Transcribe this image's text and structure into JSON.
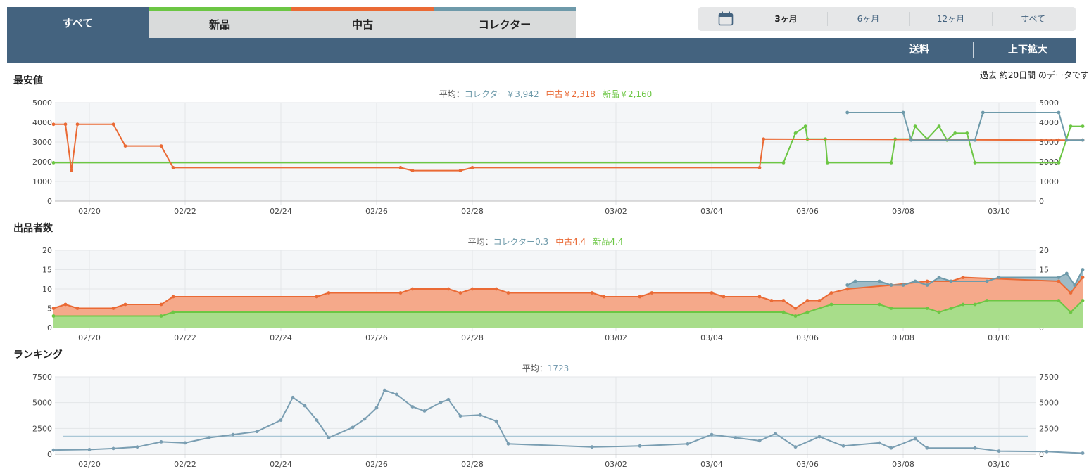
{
  "tabs": [
    {
      "label": "すべて",
      "accent": "#44637f",
      "active": true
    },
    {
      "label": "新品",
      "accent": "#6cc644",
      "active": false
    },
    {
      "label": "中古",
      "accent": "#ea6a35",
      "active": false
    },
    {
      "label": "コレクター",
      "accent": "#6e9aaa",
      "active": false
    }
  ],
  "range": {
    "icon": "calendar-icon",
    "items": [
      "3ヶ月",
      "6ヶ月",
      "12ヶ月",
      "すべて"
    ],
    "selected": "3ヶ月"
  },
  "toolbar": {
    "shipping": "送料",
    "zoom": "上下拡大"
  },
  "note": "過去 約20日間 のデータです",
  "colors": {
    "new": "#6cc644",
    "used": "#ea6a35",
    "collector": "#6e9aaa",
    "header": "#44637f",
    "ranking": "#7a9eb2"
  },
  "dates": [
    "02/20",
    "02/22",
    "02/24",
    "02/26",
    "02/28",
    "03/02",
    "03/04",
    "03/06",
    "03/08",
    "03/10"
  ],
  "chart_data": [
    {
      "type": "line",
      "title": "最安値",
      "avg_prefix": "平均：",
      "averages": [
        {
          "name": "コレクター",
          "text": "コレクター￥3,942",
          "color": "#6e9aaa"
        },
        {
          "name": "中古",
          "text": "中古￥2,318",
          "color": "#ea6a35"
        },
        {
          "name": "新品",
          "text": "新品￥2,160",
          "color": "#6cc644"
        }
      ],
      "ylim": [
        0,
        5000
      ],
      "yticks": [
        0,
        1000,
        2000,
        3000,
        4000,
        5000
      ],
      "xlim": [
        "02/19",
        "03/12"
      ],
      "grid": true,
      "series": [
        {
          "name": "新品",
          "color": "#6cc644",
          "points": [
            [
              "02/19 06:00",
              1950
            ],
            [
              "03/05 12:00",
              1950
            ],
            [
              "03/05 18:00",
              3450
            ],
            [
              "03/05 23:00",
              3800
            ],
            [
              "03/06 00:00",
              3150
            ],
            [
              "03/06 09:00",
              3150
            ],
            [
              "03/06 10:00",
              1950
            ],
            [
              "03/07 18:00",
              1950
            ],
            [
              "03/07 20:00",
              3150
            ],
            [
              "03/08 04:00",
              3150
            ],
            [
              "03/08 06:00",
              3800
            ],
            [
              "03/08 12:00",
              3150
            ],
            [
              "03/08 18:00",
              3800
            ],
            [
              "03/08 22:00",
              3100
            ],
            [
              "03/09 02:00",
              3450
            ],
            [
              "03/09 08:00",
              3450
            ],
            [
              "03/09 12:00",
              1950
            ],
            [
              "03/11 06:00",
              1950
            ],
            [
              "03/11 12:00",
              3800
            ],
            [
              "03/11 18:00",
              3800
            ]
          ]
        },
        {
          "name": "中古",
          "color": "#ea6a35",
          "points": [
            [
              "02/19 06:00",
              3900
            ],
            [
              "02/19 12:00",
              3900
            ],
            [
              "02/19 15:00",
              1550
            ],
            [
              "02/19 18:00",
              3900
            ],
            [
              "02/20 12:00",
              3900
            ],
            [
              "02/20 18:00",
              2800
            ],
            [
              "02/21 12:00",
              2800
            ],
            [
              "02/21 18:00",
              1700
            ],
            [
              "02/26 12:00",
              1700
            ],
            [
              "02/26 18:00",
              1550
            ],
            [
              "02/27 18:00",
              1550
            ],
            [
              "02/28 00:00",
              1700
            ],
            [
              "03/05 00:00",
              1700
            ],
            [
              "03/05 02:00",
              3150
            ],
            [
              "03/11 06:00",
              3100
            ],
            [
              "03/11 18:00",
              3100
            ]
          ]
        },
        {
          "name": "コレクター",
          "color": "#6e9aaa",
          "points": [
            [
              "03/06 20:00",
              4500
            ],
            [
              "03/08 00:00",
              4500
            ],
            [
              "03/08 04:00",
              3100
            ],
            [
              "03/09 12:00",
              3100
            ],
            [
              "03/09 16:00",
              4500
            ],
            [
              "03/11 06:00",
              4500
            ],
            [
              "03/11 10:00",
              3100
            ],
            [
              "03/11 18:00",
              3100
            ]
          ]
        }
      ]
    },
    {
      "type": "area",
      "title": "出品者数",
      "avg_prefix": "平均：",
      "averages": [
        {
          "name": "コレクター",
          "text": "コレクター0.3",
          "color": "#6e9aaa"
        },
        {
          "name": "中古",
          "text": "中古4.4",
          "color": "#ea6a35"
        },
        {
          "name": "新品",
          "text": "新品4.4",
          "color": "#6cc644"
        }
      ],
      "ylim": [
        0,
        20
      ],
      "yticks": [
        0,
        5,
        10,
        15,
        20
      ],
      "xlim": [
        "02/19",
        "03/12"
      ],
      "grid": true,
      "stacked": true,
      "series": [
        {
          "name": "新品",
          "color": "#6cc644",
          "points": [
            [
              "02/19 06:00",
              3
            ],
            [
              "02/21 12:00",
              3
            ],
            [
              "02/21 18:00",
              4
            ],
            [
              "03/05 12:00",
              4
            ],
            [
              "03/05 18:00",
              3
            ],
            [
              "03/06 00:00",
              4
            ],
            [
              "03/06 12:00",
              6
            ],
            [
              "03/07 12:00",
              6
            ],
            [
              "03/07 18:00",
              5
            ],
            [
              "03/08 12:00",
              5
            ],
            [
              "03/08 18:00",
              4
            ],
            [
              "03/09 00:00",
              5
            ],
            [
              "03/09 06:00",
              6
            ],
            [
              "03/09 12:00",
              6
            ],
            [
              "03/09 18:00",
              7
            ],
            [
              "03/11 06:00",
              7
            ],
            [
              "03/11 12:00",
              4
            ],
            [
              "03/11 18:00",
              7
            ]
          ]
        },
        {
          "name": "中古",
          "color": "#ea6a35",
          "points": [
            [
              "02/19 06:00",
              5
            ],
            [
              "02/19 12:00",
              6
            ],
            [
              "02/19 18:00",
              5
            ],
            [
              "02/20 12:00",
              5
            ],
            [
              "02/20 18:00",
              6
            ],
            [
              "02/21 12:00",
              6
            ],
            [
              "02/21 18:00",
              8
            ],
            [
              "02/24 18:00",
              8
            ],
            [
              "02/25 00:00",
              9
            ],
            [
              "02/26 12:00",
              9
            ],
            [
              "02/26 18:00",
              10
            ],
            [
              "02/27 12:00",
              10
            ],
            [
              "02/27 18:00",
              9
            ],
            [
              "02/28 00:00",
              10
            ],
            [
              "02/28 12:00",
              10
            ],
            [
              "02/28 18:00",
              9
            ],
            [
              "03/01 12:00",
              9
            ],
            [
              "03/01 18:00",
              8
            ],
            [
              "03/02 12:00",
              8
            ],
            [
              "03/02 18:00",
              9
            ],
            [
              "03/04 00:00",
              9
            ],
            [
              "03/04 06:00",
              8
            ],
            [
              "03/05 00:00",
              8
            ],
            [
              "03/05 06:00",
              7
            ],
            [
              "03/05 12:00",
              7
            ],
            [
              "03/05 18:00",
              5
            ],
            [
              "03/06 00:00",
              7
            ],
            [
              "03/06 06:00",
              7
            ],
            [
              "03/06 12:00",
              9
            ],
            [
              "03/06 20:00",
              10
            ],
            [
              "03/07 18:00",
              11
            ],
            [
              "03/08 12:00",
              12
            ],
            [
              "03/09 00:00",
              12
            ],
            [
              "03/09 06:00",
              13
            ],
            [
              "03/11 06:00",
              12
            ],
            [
              "03/11 12:00",
              9
            ],
            [
              "03/11 18:00",
              13
            ]
          ]
        },
        {
          "name": "コレクター",
          "color": "#6e9aaa",
          "points": [
            [
              "03/06 20:00",
              11
            ],
            [
              "03/07 00:00",
              12
            ],
            [
              "03/07 12:00",
              12
            ],
            [
              "03/07 18:00",
              11
            ],
            [
              "03/08 00:00",
              11
            ],
            [
              "03/08 06:00",
              12
            ],
            [
              "03/08 12:00",
              11
            ],
            [
              "03/08 18:00",
              13
            ],
            [
              "03/09 00:00",
              12
            ],
            [
              "03/09 18:00",
              12
            ],
            [
              "03/10 00:00",
              13
            ],
            [
              "03/11 06:00",
              13
            ],
            [
              "03/11 10:00",
              14
            ],
            [
              "03/11 14:00",
              11
            ],
            [
              "03/11 18:00",
              15
            ]
          ]
        }
      ]
    },
    {
      "type": "line",
      "title": "ランキング",
      "avg_prefix": "平均：",
      "averages": [
        {
          "name": "ランキング",
          "text": "1723",
          "color": "#7a9eb2"
        }
      ],
      "ylim": [
        0,
        7500
      ],
      "yticks": [
        0,
        2500,
        5000,
        7500
      ],
      "xlim": [
        "02/19",
        "03/12"
      ],
      "grid": true,
      "average_line": 1723,
      "series": [
        {
          "name": "ランキング",
          "color": "#7a9eb2",
          "points": [
            [
              "02/19 06:00",
              400
            ],
            [
              "02/20 00:00",
              450
            ],
            [
              "02/20 12:00",
              550
            ],
            [
              "02/21 00:00",
              700
            ],
            [
              "02/21 12:00",
              1200
            ],
            [
              "02/22 00:00",
              1100
            ],
            [
              "02/22 12:00",
              1600
            ],
            [
              "02/23 00:00",
              1900
            ],
            [
              "02/23 12:00",
              2200
            ],
            [
              "02/24 00:00",
              3300
            ],
            [
              "02/24 06:00",
              5500
            ],
            [
              "02/24 12:00",
              4700
            ],
            [
              "02/24 18:00",
              3300
            ],
            [
              "02/25 00:00",
              1600
            ],
            [
              "02/25 12:00",
              2600
            ],
            [
              "02/25 18:00",
              3400
            ],
            [
              "02/26 00:00",
              4500
            ],
            [
              "02/26 04:00",
              6200
            ],
            [
              "02/26 10:00",
              5800
            ],
            [
              "02/26 18:00",
              4600
            ],
            [
              "02/27 00:00",
              4200
            ],
            [
              "02/27 08:00",
              5000
            ],
            [
              "02/27 12:00",
              5300
            ],
            [
              "02/27 18:00",
              3700
            ],
            [
              "02/28 04:00",
              3800
            ],
            [
              "02/28 12:00",
              3200
            ],
            [
              "02/28 18:00",
              1000
            ],
            [
              "03/01 12:00",
              700
            ],
            [
              "03/02 12:00",
              800
            ],
            [
              "03/03 12:00",
              1000
            ],
            [
              "03/04 00:00",
              1900
            ],
            [
              "03/04 12:00",
              1600
            ],
            [
              "03/05 00:00",
              1300
            ],
            [
              "03/05 08:00",
              2000
            ],
            [
              "03/05 18:00",
              700
            ],
            [
              "03/06 06:00",
              1700
            ],
            [
              "03/06 18:00",
              800
            ],
            [
              "03/07 12:00",
              1100
            ],
            [
              "03/07 18:00",
              600
            ],
            [
              "03/08 06:00",
              1500
            ],
            [
              "03/08 12:00",
              600
            ],
            [
              "03/09 12:00",
              600
            ],
            [
              "03/10 00:00",
              300
            ],
            [
              "03/11 00:00",
              250
            ],
            [
              "03/11 18:00",
              100
            ]
          ]
        }
      ]
    }
  ]
}
